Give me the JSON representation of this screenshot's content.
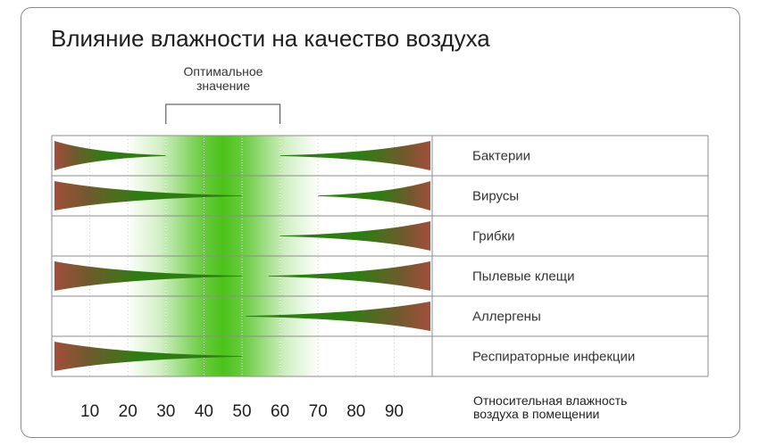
{
  "chart_data": {
    "type": "heatmap",
    "title": "Влияние влажности на качество воздуха",
    "optimal_range_label": "Оптимальное\nзначение",
    "optimal_range": [
      30,
      60
    ],
    "peak_optimal": 45,
    "x_ticks": [
      10,
      20,
      30,
      40,
      50,
      60,
      70,
      80,
      90
    ],
    "xlim": [
      0,
      100
    ],
    "xlabel": "Относительная влажность\nвоздуха в помещении",
    "colors": {
      "optimal": "#4cc21a",
      "risk_low": "#2e7d12",
      "risk_high": "#a14e3b",
      "grid": "#999999"
    },
    "rows": [
      {
        "label": "Бактерии",
        "low_risk_until": 30,
        "high_risk_from": 60
      },
      {
        "label": "Вирусы",
        "low_risk_until": 50,
        "high_risk_from": 70
      },
      {
        "label": "Грибки",
        "low_risk_until": null,
        "high_risk_from": 60
      },
      {
        "label": "Пылевые клещи",
        "low_risk_until": 50,
        "high_risk_from": 57
      },
      {
        "label": "Аллергены",
        "low_risk_until": null,
        "high_risk_from": 51
      },
      {
        "label": "Респираторные инфекции",
        "low_risk_until": 50,
        "high_risk_from": null
      }
    ]
  }
}
